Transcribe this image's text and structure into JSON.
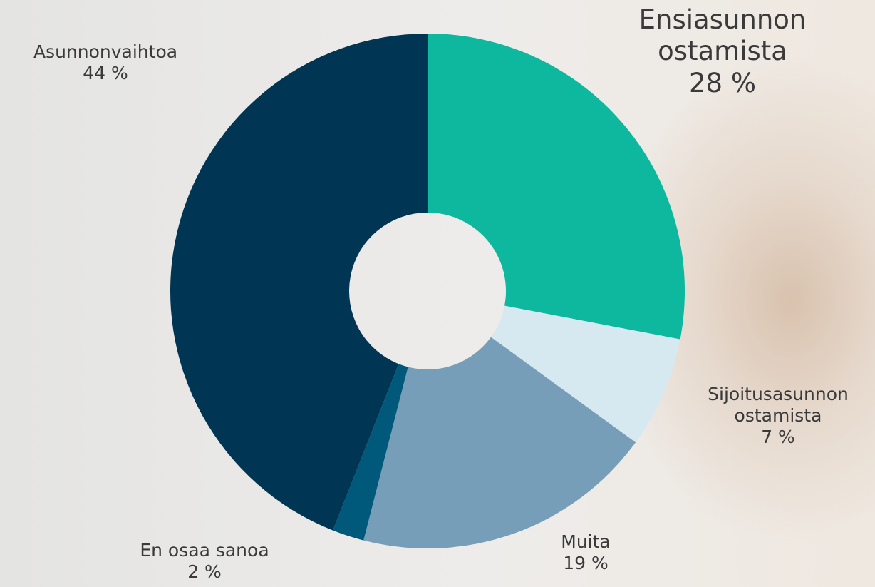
{
  "chart_data": {
    "type": "donut",
    "categories": [
      "Ensiasunnon ostamista",
      "Sijoitusasunnon ostamista",
      "Muita",
      "En osaa sanoa",
      "Asunnonvaihtoa"
    ],
    "values": [
      28,
      7,
      19,
      2,
      44
    ],
    "value_labels": [
      "28 %",
      "7 %",
      "19 %",
      "2 %",
      "44 %"
    ],
    "colors": [
      "#0db89e",
      "#d6e9f0",
      "#769eb8",
      "#00597a",
      "#003654"
    ]
  }
}
